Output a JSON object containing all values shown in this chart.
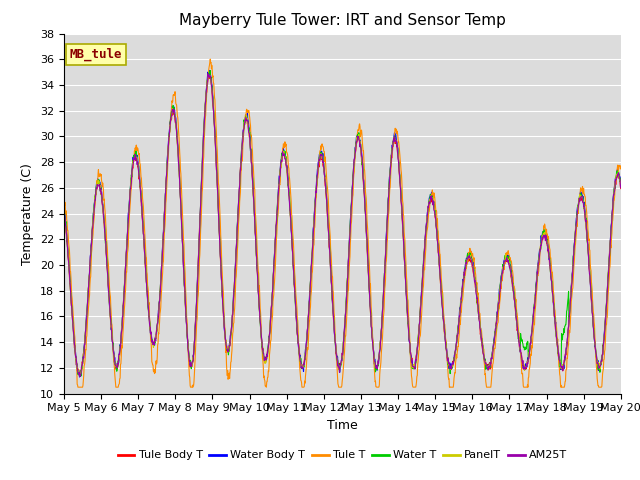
{
  "title": "Mayberry Tule Tower: IRT and Sensor Temp",
  "xlabel": "Time",
  "ylabel": "Temperature (C)",
  "ylim": [
    10,
    38
  ],
  "yticks": [
    10,
    12,
    14,
    16,
    18,
    20,
    22,
    24,
    26,
    28,
    30,
    32,
    34,
    36,
    38
  ],
  "station_label": "MB_tule",
  "legend_entries": [
    "Tule Body T",
    "Water Body T",
    "Tule T",
    "Water T",
    "PanelT",
    "AM25T"
  ],
  "line_colors": [
    "#ff0000",
    "#0000ff",
    "#ff8c00",
    "#00cc00",
    "#cccc00",
    "#9900aa"
  ],
  "background_color": "#dcdcdc",
  "title_fontsize": 11,
  "axis_fontsize": 9,
  "tick_fontsize": 8,
  "n_days": 15,
  "n_per_day": 96,
  "start_day": 5,
  "figsize": [
    6.4,
    4.8
  ],
  "dpi": 100
}
